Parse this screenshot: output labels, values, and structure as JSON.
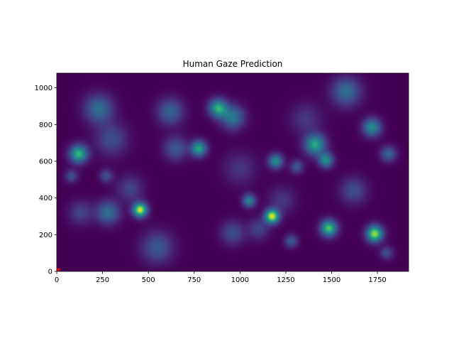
{
  "chart_data": {
    "type": "heatmap",
    "title": "Human Gaze Prediction",
    "xlabel": "",
    "ylabel": "",
    "xlim": [
      0,
      1920
    ],
    "ylim": [
      0,
      1080
    ],
    "x_ticks": [
      0,
      250,
      500,
      750,
      1000,
      1250,
      1500,
      1750
    ],
    "y_ticks": [
      0,
      200,
      400,
      600,
      800,
      1000
    ],
    "colormap": "viridis",
    "background_color": "#440154",
    "grid": false,
    "hotspots": [
      {
        "x": 455,
        "y": 335,
        "sigma": 28,
        "weight": 0.95
      },
      {
        "x": 1175,
        "y": 300,
        "sigma": 28,
        "weight": 0.95
      },
      {
        "x": 1735,
        "y": 205,
        "sigma": 32,
        "weight": 0.9
      },
      {
        "x": 1485,
        "y": 235,
        "sigma": 32,
        "weight": 0.8
      },
      {
        "x": 120,
        "y": 640,
        "sigma": 35,
        "weight": 0.75
      },
      {
        "x": 775,
        "y": 670,
        "sigma": 30,
        "weight": 0.7
      },
      {
        "x": 880,
        "y": 890,
        "sigma": 35,
        "weight": 0.7
      },
      {
        "x": 1410,
        "y": 690,
        "sigma": 40,
        "weight": 0.7
      },
      {
        "x": 1195,
        "y": 600,
        "sigma": 28,
        "weight": 0.6
      },
      {
        "x": 1470,
        "y": 605,
        "sigma": 28,
        "weight": 0.6
      },
      {
        "x": 1720,
        "y": 785,
        "sigma": 35,
        "weight": 0.6
      },
      {
        "x": 1050,
        "y": 385,
        "sigma": 25,
        "weight": 0.55
      },
      {
        "x": 280,
        "y": 320,
        "sigma": 45,
        "weight": 0.45
      },
      {
        "x": 230,
        "y": 885,
        "sigma": 55,
        "weight": 0.45
      },
      {
        "x": 620,
        "y": 870,
        "sigma": 50,
        "weight": 0.4
      },
      {
        "x": 960,
        "y": 840,
        "sigma": 45,
        "weight": 0.5
      },
      {
        "x": 1580,
        "y": 980,
        "sigma": 55,
        "weight": 0.45
      },
      {
        "x": 650,
        "y": 670,
        "sigma": 45,
        "weight": 0.35
      },
      {
        "x": 300,
        "y": 720,
        "sigma": 60,
        "weight": 0.3
      },
      {
        "x": 550,
        "y": 130,
        "sigma": 60,
        "weight": 0.35
      },
      {
        "x": 960,
        "y": 210,
        "sigma": 45,
        "weight": 0.3
      },
      {
        "x": 1620,
        "y": 440,
        "sigma": 50,
        "weight": 0.3
      },
      {
        "x": 1810,
        "y": 640,
        "sigma": 30,
        "weight": 0.4
      },
      {
        "x": 1310,
        "y": 570,
        "sigma": 25,
        "weight": 0.35
      },
      {
        "x": 1280,
        "y": 165,
        "sigma": 25,
        "weight": 0.35
      },
      {
        "x": 1800,
        "y": 100,
        "sigma": 25,
        "weight": 0.3
      },
      {
        "x": 270,
        "y": 520,
        "sigma": 25,
        "weight": 0.3
      },
      {
        "x": 80,
        "y": 520,
        "sigma": 25,
        "weight": 0.3
      },
      {
        "x": 400,
        "y": 450,
        "sigma": 50,
        "weight": 0.25
      },
      {
        "x": 1000,
        "y": 560,
        "sigma": 60,
        "weight": 0.2
      },
      {
        "x": 1360,
        "y": 830,
        "sigma": 60,
        "weight": 0.2
      },
      {
        "x": 130,
        "y": 320,
        "sigma": 45,
        "weight": 0.25
      },
      {
        "x": 1230,
        "y": 390,
        "sigma": 50,
        "weight": 0.2
      },
      {
        "x": 1100,
        "y": 230,
        "sigma": 40,
        "weight": 0.25
      }
    ],
    "marker": {
      "x": 10,
      "y": 10,
      "color": "#ff0000"
    }
  }
}
